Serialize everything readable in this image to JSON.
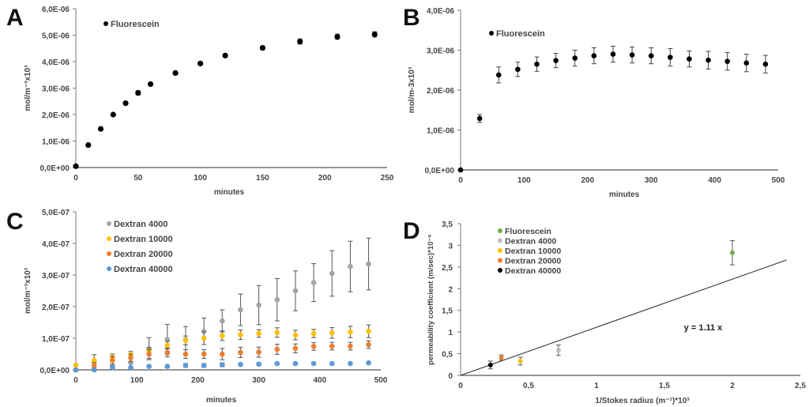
{
  "chart_data": [
    {
      "panel": "A",
      "type": "scatter",
      "title": "",
      "xlabel": "minutes",
      "ylabel": "mol/m⁻³x10³",
      "xlim": [
        0,
        250
      ],
      "ylim": [
        0,
        6e-06
      ],
      "xticks": [
        "0",
        "50",
        "100",
        "150",
        "200",
        "250"
      ],
      "yticks": [
        "0,0E+00",
        "1,0E-06",
        "2,0E-06",
        "3,0E-06",
        "4,0E-06",
        "5,0E-06",
        "6,0E-06"
      ],
      "legend": [
        "Fluorescein"
      ],
      "legend_position": "top-left",
      "grid": false,
      "series": [
        {
          "name": "Fluorescein",
          "color": "#000000",
          "x": [
            0,
            10,
            20,
            30,
            40,
            50,
            60,
            80,
            100,
            120,
            150,
            180,
            210,
            240
          ],
          "y": [
            5e-08,
            8.5e-07,
            1.46e-06,
            2e-06,
            2.43e-06,
            2.82e-06,
            3.15e-06,
            3.57e-06,
            3.93e-06,
            4.23e-06,
            4.52e-06,
            4.76e-06,
            4.94e-06,
            5.03e-06
          ],
          "err": [
            0,
            3e-08,
            4e-08,
            4e-08,
            6e-08,
            8e-08,
            5e-08,
            6e-08,
            5e-08,
            6e-08,
            7e-08,
            1e-07,
            1e-07,
            1e-07
          ]
        }
      ]
    },
    {
      "panel": "B",
      "type": "scatter",
      "title": "",
      "xlabel": "minutes",
      "ylabel": "mol/m-3x10³",
      "xlim": [
        0,
        500
      ],
      "ylim": [
        0,
        4e-06
      ],
      "xticks": [
        "0",
        "100",
        "200",
        "300",
        "400",
        "500"
      ],
      "yticks": [
        "0,0E+00",
        "1,0E-06",
        "2,0E-06",
        "3,0E-06",
        "4,0E-06"
      ],
      "legend": [
        "Fluorescein"
      ],
      "legend_position": "top-left",
      "grid": false,
      "series": [
        {
          "name": "Fluorescein",
          "color": "#000000",
          "x": [
            0,
            30,
            60,
            90,
            120,
            150,
            180,
            210,
            240,
            270,
            300,
            330,
            360,
            390,
            420,
            450,
            480
          ],
          "y": [
            0.0,
            1.29e-06,
            2.38e-06,
            2.52e-06,
            2.65e-06,
            2.74e-06,
            2.8e-06,
            2.86e-06,
            2.9e-06,
            2.88e-06,
            2.86e-06,
            2.82e-06,
            2.78e-06,
            2.75e-06,
            2.72e-06,
            2.68e-06,
            2.65e-06
          ],
          "err": [
            0,
            1e-07,
            2e-07,
            1.8e-07,
            1.8e-07,
            1.8e-07,
            2e-07,
            2e-07,
            2e-07,
            2e-07,
            2e-07,
            2.2e-07,
            2e-07,
            2.2e-07,
            2.2e-07,
            2.2e-07,
            2.2e-07
          ]
        }
      ]
    },
    {
      "panel": "C",
      "type": "scatter",
      "title": "",
      "xlabel": "minutes",
      "ylabel": "mol/m⁻³x10³",
      "xlim": [
        0,
        500
      ],
      "ylim": [
        0,
        5e-07
      ],
      "xticks": [
        "0",
        "100",
        "200",
        "300",
        "400",
        "500"
      ],
      "yticks": [
        "0,0E+00",
        "1,0E-07",
        "2,0E-07",
        "3,0E-07",
        "4,0E-07",
        "5,0E-07"
      ],
      "legend": [
        "Dextran 4000",
        "Dextran 10000",
        "Dextran 20000",
        "Dextran 40000"
      ],
      "legend_position": "top-left",
      "grid": false,
      "series": [
        {
          "name": "Dextran 4000",
          "color": "#a5a5a5",
          "x": [
            0,
            30,
            60,
            90,
            120,
            150,
            180,
            210,
            240,
            270,
            300,
            330,
            360,
            390,
            420,
            450,
            480
          ],
          "y": [
            0.0,
            1e-09,
            1.2e-08,
            2.2e-08,
            6.7e-08,
            9.6e-08,
            9.5e-08,
            1.22e-07,
            1.55e-07,
            1.9e-07,
            2.05e-07,
            2.22e-07,
            2.5e-07,
            2.76e-07,
            3.05e-07,
            3.27e-07,
            3.35e-07
          ],
          "err": [
            0,
            0,
            0,
            0,
            3.5e-08,
            4.8e-08,
            4.2e-08,
            4.2e-08,
            3.5e-08,
            5e-08,
            6.2e-08,
            6.7e-08,
            6.3e-08,
            6e-08,
            7.2e-08,
            8e-08,
            8.2e-08
          ]
        },
        {
          "name": "Dextran 10000",
          "color": "#ffc000",
          "x": [
            0,
            30,
            60,
            90,
            120,
            150,
            180,
            210,
            240,
            270,
            300,
            330,
            360,
            390,
            420,
            450,
            480
          ],
          "y": [
            1.5e-08,
            3e-08,
            4e-08,
            4.8e-08,
            6e-08,
            7.8e-08,
            9.3e-08,
            1e-07,
            1.08e-07,
            1.11e-07,
            1.15e-07,
            1.18e-07,
            1.1e-07,
            1.15e-07,
            1.17e-07,
            1.2e-07,
            1.22e-07
          ],
          "err": [
            0,
            1.8e-08,
            1e-08,
            1e-08,
            1e-08,
            1.2e-08,
            1.4e-08,
            2e-08,
            1.5e-08,
            1.5e-08,
            1.2e-08,
            1.5e-08,
            1.5e-08,
            1.3e-08,
            1.7e-08,
            1.8e-08,
            2e-08
          ]
        },
        {
          "name": "Dextran 20000",
          "color": "#ed7d31",
          "x": [
            0,
            30,
            60,
            90,
            120,
            150,
            180,
            210,
            240,
            270,
            300,
            330,
            360,
            390,
            420,
            450,
            480
          ],
          "y": [
            0.0,
            1.5e-08,
            3e-08,
            3.8e-08,
            5e-08,
            5.5e-08,
            5e-08,
            5e-08,
            5e-08,
            5.5e-08,
            5.6e-08,
            6.5e-08,
            6.8e-08,
            7.4e-08,
            7.5e-08,
            7.5e-08,
            8e-08
          ],
          "err": [
            0,
            8e-09,
            1.2e-08,
            1.2e-08,
            1.4e-08,
            1.4e-08,
            1.4e-08,
            1.4e-08,
            1.8e-08,
            1.6e-08,
            1.6e-08,
            1.6e-08,
            1.4e-08,
            1.2e-08,
            1.2e-08,
            1.2e-08,
            1.2e-08
          ]
        },
        {
          "name": "Dextran 40000",
          "color": "#5b9bd5",
          "x": [
            0,
            30,
            60,
            90,
            120,
            150,
            180,
            210,
            240,
            270,
            300,
            330,
            360,
            390,
            420,
            450,
            480
          ],
          "y": [
            0.0,
            0.0,
            7e-09,
            7e-09,
            1.1e-08,
            1.1e-08,
            1.4e-08,
            1.4e-08,
            1.6e-08,
            1.7e-08,
            1.8e-08,
            2e-08,
            2e-08,
            2e-08,
            2e-08,
            2e-08,
            2.2e-08
          ],
          "err": [
            0,
            2e-09,
            4e-09,
            4e-09,
            4e-09,
            4e-09,
            6e-09,
            6e-09,
            6e-09,
            4e-09,
            4e-09,
            3e-09,
            3e-09,
            3e-09,
            2e-09,
            2e-09,
            3e-09
          ]
        }
      ]
    },
    {
      "panel": "D",
      "type": "scatter",
      "title": "",
      "xlabel": "1/Stokes radius (m⁻¹)*10³",
      "ylabel": "permeability coefficient (m/sec)*10⁻⁶",
      "xlim": [
        0,
        2.5
      ],
      "ylim": [
        0,
        3.5
      ],
      "xticks": [
        "0",
        "0,5",
        "1",
        "1,5",
        "2",
        "2,5"
      ],
      "yticks": [
        "0",
        "0,5",
        "1",
        "1,5",
        "2",
        "2,5",
        "3",
        "3,5"
      ],
      "legend": [
        "Fluorescein",
        "Dextran 4000",
        "Dextran 10000",
        "Dextran 20000",
        "Dextran 40000"
      ],
      "legend_position": "top-left",
      "grid": false,
      "annotation": "y = 1.11 x",
      "trendline": {
        "slope": 1.11,
        "intercept": 0,
        "x_range": [
          0,
          2.4
        ]
      },
      "series": [
        {
          "name": "Fluorescein",
          "color": "#70ad47",
          "x": [
            2.0
          ],
          "y": [
            2.83
          ],
          "err": [
            0.28
          ]
        },
        {
          "name": "Dextran 4000",
          "color": "#bfbfbf",
          "x": [
            0.72
          ],
          "y": [
            0.58
          ],
          "err": [
            0.12
          ]
        },
        {
          "name": "Dextran 10000",
          "color": "#ffc000",
          "x": [
            0.44
          ],
          "y": [
            0.33
          ],
          "err": [
            0.09
          ]
        },
        {
          "name": "Dextran 20000",
          "color": "#ed7d31",
          "x": [
            0.3
          ],
          "y": [
            0.41
          ],
          "err": [
            0.06
          ]
        },
        {
          "name": "Dextran 40000",
          "color": "#000000",
          "x": [
            0.22
          ],
          "y": [
            0.24
          ],
          "err": [
            0.09
          ]
        }
      ]
    }
  ],
  "panel_labels": [
    "A",
    "B",
    "C",
    "D"
  ]
}
